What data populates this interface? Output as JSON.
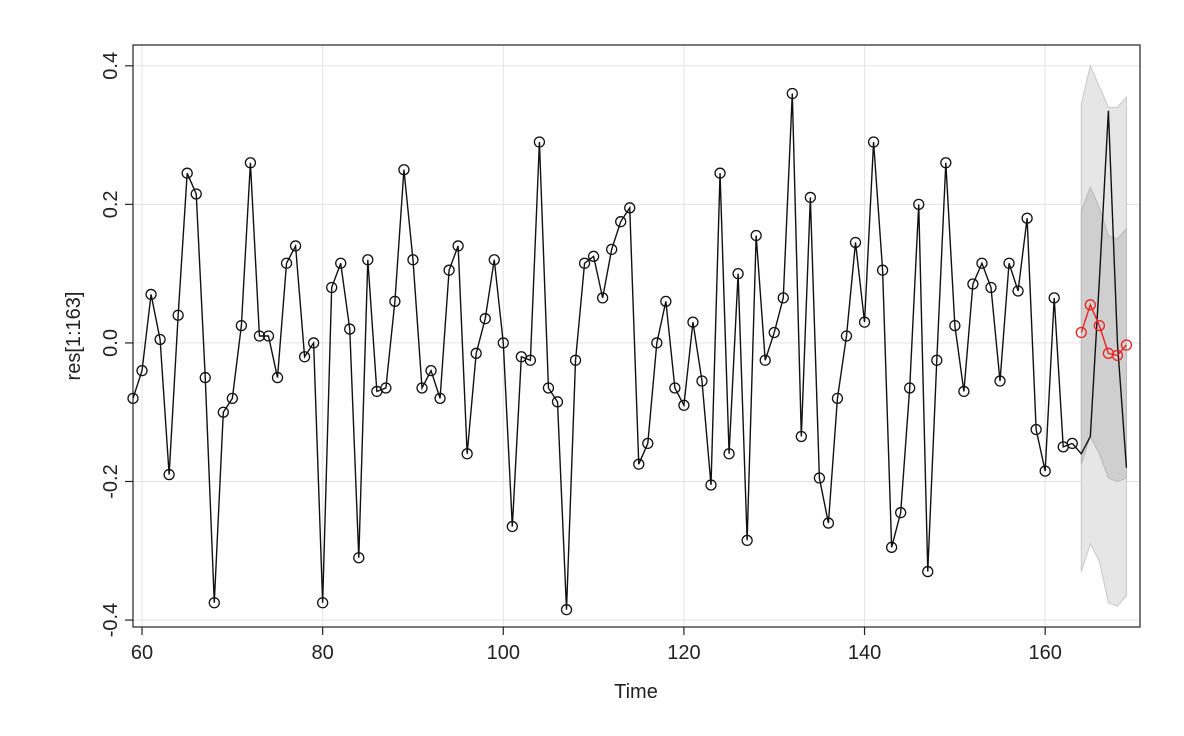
{
  "chart_data": {
    "type": "line",
    "title": "",
    "xlabel": "Time",
    "ylabel": "res[1:163]",
    "xlim": [
      59,
      170.5
    ],
    "ylim": [
      -0.41,
      0.43
    ],
    "x_ticks": [
      60,
      80,
      100,
      120,
      140,
      160
    ],
    "y_ticks": [
      -0.4,
      -0.2,
      0.0,
      0.2,
      0.4
    ],
    "x_tick_labels": [
      "60",
      "80",
      "100",
      "120",
      "140",
      "160"
    ],
    "y_tick_labels": [
      "-0.4",
      "-0.2",
      "0.0",
      "0.2",
      "0.4"
    ],
    "grid": true,
    "colors": {
      "observed": "#111111",
      "forecast": "#ee2020",
      "band_outer": "#e6e6e6",
      "band_inner": "#cfcfcf",
      "grid": "#e3e3e3"
    },
    "observed": {
      "x_start": 59,
      "values": [
        -0.08,
        -0.04,
        0.07,
        0.005,
        -0.19,
        0.04,
        0.245,
        0.215,
        -0.05,
        -0.375,
        -0.1,
        -0.08,
        0.025,
        0.26,
        0.01,
        0.01,
        -0.05,
        0.115,
        0.14,
        -0.02,
        0.0,
        -0.375,
        0.08,
        0.115,
        0.02,
        -0.31,
        0.12,
        -0.07,
        -0.065,
        0.06,
        0.25,
        0.12,
        -0.065,
        -0.04,
        -0.08,
        0.105,
        0.14,
        -0.16,
        -0.015,
        0.035,
        0.12,
        0.0,
        -0.265,
        -0.02,
        -0.025,
        0.29,
        -0.065,
        -0.085,
        -0.385,
        -0.025,
        0.115,
        0.125,
        0.065,
        0.135,
        0.175,
        0.195,
        -0.175,
        -0.145,
        0.0,
        0.06,
        -0.065,
        -0.09,
        0.03,
        -0.055,
        -0.205,
        0.245,
        -0.16,
        0.1,
        -0.285,
        0.155,
        -0.025,
        0.015,
        0.065,
        0.36,
        -0.135,
        0.21,
        -0.195,
        -0.26,
        -0.08,
        0.01,
        0.145,
        0.03,
        0.29,
        0.105,
        -0.295,
        -0.245,
        -0.065,
        0.2,
        -0.33,
        -0.025,
        0.26,
        0.025,
        -0.07,
        0.085,
        0.115,
        0.08,
        -0.055,
        0.115,
        0.075,
        0.18,
        -0.125,
        -0.185,
        0.065,
        -0.15,
        -0.145
      ]
    },
    "simulated_path": {
      "x": [
        163,
        164,
        165,
        166,
        167,
        168,
        169
      ],
      "values": [
        -0.145,
        -0.16,
        -0.135,
        0.09,
        0.335,
        0.0,
        -0.18
      ]
    },
    "forecast": {
      "x": [
        164,
        165,
        166,
        167,
        168,
        169
      ],
      "values": [
        0.015,
        0.055,
        0.025,
        -0.015,
        -0.018,
        -0.003
      ]
    },
    "band_outer": {
      "x": [
        164,
        165,
        166,
        167,
        168,
        169
      ],
      "upper": [
        0.345,
        0.4,
        0.37,
        0.34,
        0.34,
        0.355
      ],
      "lower": [
        -0.33,
        -0.29,
        -0.315,
        -0.375,
        -0.38,
        -0.365
      ]
    },
    "band_inner": {
      "x": [
        164,
        165,
        166,
        167,
        168,
        169
      ],
      "upper": [
        0.19,
        0.225,
        0.195,
        0.155,
        0.15,
        0.165
      ],
      "lower": [
        -0.175,
        -0.135,
        -0.16,
        -0.195,
        -0.2,
        -0.195
      ]
    }
  }
}
